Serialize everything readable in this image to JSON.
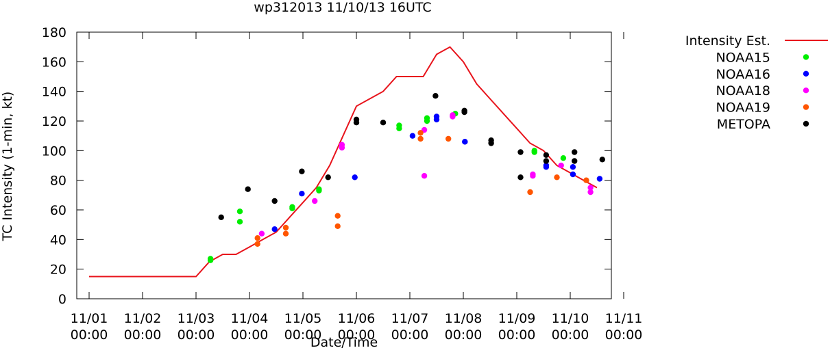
{
  "chart_data": {
    "type": "scatter",
    "title": "wp312013 11/10/13 16UTC",
    "xlabel": "Date/Time",
    "ylabel": "TC Intensity (1-min, kt)",
    "x_unit": "days since 11/01 00:00",
    "xlim": [
      0,
      10
    ],
    "ylim": [
      0,
      180
    ],
    "x_ticks": [
      {
        "x": 0,
        "line1": "11/01",
        "line2": "00:00"
      },
      {
        "x": 1,
        "line1": "11/02",
        "line2": "00:00"
      },
      {
        "x": 2,
        "line1": "11/03",
        "line2": "00:00"
      },
      {
        "x": 3,
        "line1": "11/04",
        "line2": "00:00"
      },
      {
        "x": 4,
        "line1": "11/05",
        "line2": "00:00"
      },
      {
        "x": 5,
        "line1": "11/06",
        "line2": "00:00"
      },
      {
        "x": 6,
        "line1": "11/07",
        "line2": "00:00"
      },
      {
        "x": 7,
        "line1": "11/08",
        "line2": "00:00"
      },
      {
        "x": 8,
        "line1": "11/09",
        "line2": "00:00"
      },
      {
        "x": 9,
        "line1": "11/10",
        "line2": "00:00"
      },
      {
        "x": 10,
        "line1": "11/11",
        "line2": "00:00"
      }
    ],
    "y_ticks": [
      0,
      20,
      40,
      60,
      80,
      100,
      120,
      140,
      160,
      180
    ],
    "legend_position": "outside-right",
    "series": [
      {
        "name": "Intensity Est.",
        "kind": "line",
        "color": "#e8141c",
        "points": [
          [
            0.0,
            15
          ],
          [
            0.5,
            15
          ],
          [
            1.0,
            15
          ],
          [
            1.5,
            15
          ],
          [
            2.0,
            15
          ],
          [
            2.25,
            25
          ],
          [
            2.5,
            30
          ],
          [
            2.75,
            30
          ],
          [
            3.0,
            35
          ],
          [
            3.25,
            40
          ],
          [
            3.5,
            45
          ],
          [
            3.75,
            55
          ],
          [
            4.0,
            65
          ],
          [
            4.25,
            75
          ],
          [
            4.5,
            90
          ],
          [
            4.75,
            110
          ],
          [
            5.0,
            130
          ],
          [
            5.25,
            135
          ],
          [
            5.5,
            140
          ],
          [
            5.75,
            150
          ],
          [
            6.0,
            150
          ],
          [
            6.25,
            150
          ],
          [
            6.5,
            165
          ],
          [
            6.75,
            170
          ],
          [
            7.0,
            160
          ],
          [
            7.25,
            145
          ],
          [
            7.5,
            135
          ],
          [
            7.75,
            125
          ],
          [
            8.0,
            115
          ],
          [
            8.25,
            105
          ],
          [
            8.5,
            100
          ],
          [
            8.75,
            90
          ],
          [
            9.0,
            85
          ],
          [
            9.25,
            80
          ],
          [
            9.5,
            75
          ]
        ]
      },
      {
        "name": "NOAA15",
        "kind": "points",
        "color": "#00ee00",
        "points": [
          [
            2.27,
            26
          ],
          [
            2.27,
            27
          ],
          [
            2.82,
            52
          ],
          [
            2.82,
            59
          ],
          [
            3.8,
            61
          ],
          [
            3.8,
            62
          ],
          [
            4.3,
            73
          ],
          [
            4.3,
            74
          ],
          [
            5.8,
            115
          ],
          [
            5.8,
            117
          ],
          [
            6.32,
            120
          ],
          [
            6.32,
            122
          ],
          [
            6.85,
            125
          ],
          [
            8.33,
            99
          ],
          [
            8.33,
            100
          ],
          [
            8.87,
            95
          ]
        ]
      },
      {
        "name": "NOAA16",
        "kind": "points",
        "color": "#0000ff",
        "points": [
          [
            3.47,
            47
          ],
          [
            3.98,
            71
          ],
          [
            4.97,
            82
          ],
          [
            6.05,
            110
          ],
          [
            6.5,
            121
          ],
          [
            6.5,
            123
          ],
          [
            7.03,
            106
          ],
          [
            7.03,
            106
          ],
          [
            8.55,
            89
          ],
          [
            8.55,
            90
          ],
          [
            9.05,
            84
          ],
          [
            9.05,
            89
          ],
          [
            9.55,
            81
          ]
        ]
      },
      {
        "name": "NOAA18",
        "kind": "points",
        "color": "#ff00ff",
        "points": [
          [
            3.23,
            44
          ],
          [
            4.22,
            66
          ],
          [
            4.73,
            102
          ],
          [
            4.73,
            104
          ],
          [
            6.27,
            83
          ],
          [
            6.27,
            114
          ],
          [
            6.8,
            123
          ],
          [
            6.8,
            124
          ],
          [
            8.3,
            83
          ],
          [
            8.3,
            84
          ],
          [
            8.83,
            90
          ],
          [
            9.38,
            72
          ],
          [
            9.38,
            75
          ]
        ]
      },
      {
        "name": "NOAA19",
        "kind": "points",
        "color": "#ff5500",
        "points": [
          [
            3.15,
            37
          ],
          [
            3.15,
            41
          ],
          [
            3.68,
            44
          ],
          [
            3.68,
            48
          ],
          [
            4.65,
            49
          ],
          [
            4.65,
            56
          ],
          [
            6.2,
            108
          ],
          [
            6.2,
            112
          ],
          [
            6.72,
            108
          ],
          [
            8.25,
            72
          ],
          [
            8.75,
            82
          ],
          [
            9.3,
            80
          ]
        ]
      },
      {
        "name": "METOPA",
        "kind": "points",
        "color": "#000000",
        "points": [
          [
            2.47,
            55
          ],
          [
            2.97,
            74
          ],
          [
            3.47,
            66
          ],
          [
            3.98,
            86
          ],
          [
            4.47,
            82
          ],
          [
            5.0,
            119
          ],
          [
            5.0,
            121
          ],
          [
            5.5,
            119
          ],
          [
            6.48,
            137
          ],
          [
            7.02,
            126
          ],
          [
            7.02,
            127
          ],
          [
            7.52,
            105
          ],
          [
            7.52,
            107
          ],
          [
            8.07,
            82
          ],
          [
            8.07,
            99
          ],
          [
            8.55,
            93
          ],
          [
            8.55,
            97
          ],
          [
            9.08,
            93
          ],
          [
            9.08,
            99
          ],
          [
            9.6,
            94
          ]
        ]
      }
    ]
  }
}
